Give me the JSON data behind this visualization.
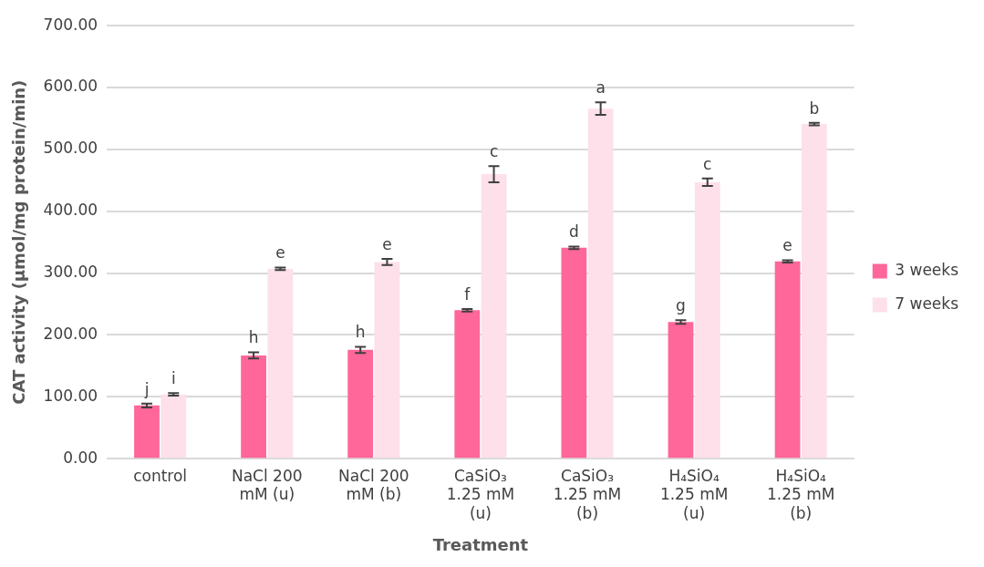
{
  "chart_data": {
    "type": "bar",
    "xlabel": "Treatment",
    "ylabel": "CAT activity (µmol/mg protein/min)",
    "categories": [
      "control",
      "NaCl 200\nmM (u)",
      "NaCl 200\nmM (b)",
      "CaSiO₃\n1.25 mM\n(u)",
      "CaSiO₃\n1.25 mM\n(b)",
      "H₄SiO₄\n1.25 mM\n(u)",
      "H₄SiO₄\n1.25 mM\n(b)"
    ],
    "series": [
      {
        "name": "3 weeks",
        "color": "#ff6699",
        "values": [
          86,
          167,
          176,
          240,
          341,
          221,
          319
        ],
        "errors": [
          3,
          5,
          5,
          2,
          2,
          3,
          2
        ]
      },
      {
        "name": "7 weeks",
        "color": "#fde0ea",
        "values": [
          104,
          307,
          318,
          460,
          566,
          447,
          541
        ],
        "errors": [
          2,
          2,
          5,
          13,
          10,
          6,
          2
        ]
      }
    ],
    "ylim": [
      0,
      700
    ],
    "yticks": [
      {
        "value": 0,
        "label": "0.00"
      },
      {
        "value": 100,
        "label": "100.00"
      },
      {
        "value": 200,
        "label": "200.00"
      },
      {
        "value": 300,
        "label": "300.00"
      },
      {
        "value": 400,
        "label": "400.00"
      },
      {
        "value": 500,
        "label": "500.00"
      },
      {
        "value": 600,
        "label": "600.00"
      },
      {
        "value": 700,
        "label": "700.00"
      }
    ],
    "grid": "y",
    "legend": "right",
    "annotations": [
      {
        "text": "j",
        "x": "control",
        "y": 86
      },
      {
        "text": "i",
        "x": "control",
        "y": 104
      },
      {
        "text": "h",
        "x": "NaCl 200\nmM (u)",
        "y": 167
      },
      {
        "text": "e",
        "x": "NaCl 200\nmM (u)",
        "y": 307
      },
      {
        "text": "h",
        "x": "NaCl 200\nmM (b)",
        "y": 176
      },
      {
        "text": "e",
        "x": "NaCl 200\nmM (b)",
        "y": 318
      },
      {
        "text": "f",
        "x": "CaSiO₃\n1.25 mM\n(u)",
        "y": 240
      },
      {
        "text": "c",
        "x": "CaSiO₃\n1.25 mM\n(u)",
        "y": 460
      },
      {
        "text": "d",
        "x": "CaSiO₃\n1.25 mM\n(b)",
        "y": 341
      },
      {
        "text": "a",
        "x": "CaSiO₃\n1.25 mM\n(b)",
        "y": 566
      },
      {
        "text": "g",
        "x": "H₄SiO₄\n1.25 mM\n(u)",
        "y": 221
      },
      {
        "text": "c",
        "x": "H₄SiO₄\n1.25 mM\n(u)",
        "y": 447
      },
      {
        "text": "e",
        "x": "H₄SiO₄\n1.25 mM\n(b)",
        "y": 319
      },
      {
        "text": "b",
        "x": "H₄SiO₄\n1.25 mM\n(b)",
        "y": 541
      }
    ]
  }
}
